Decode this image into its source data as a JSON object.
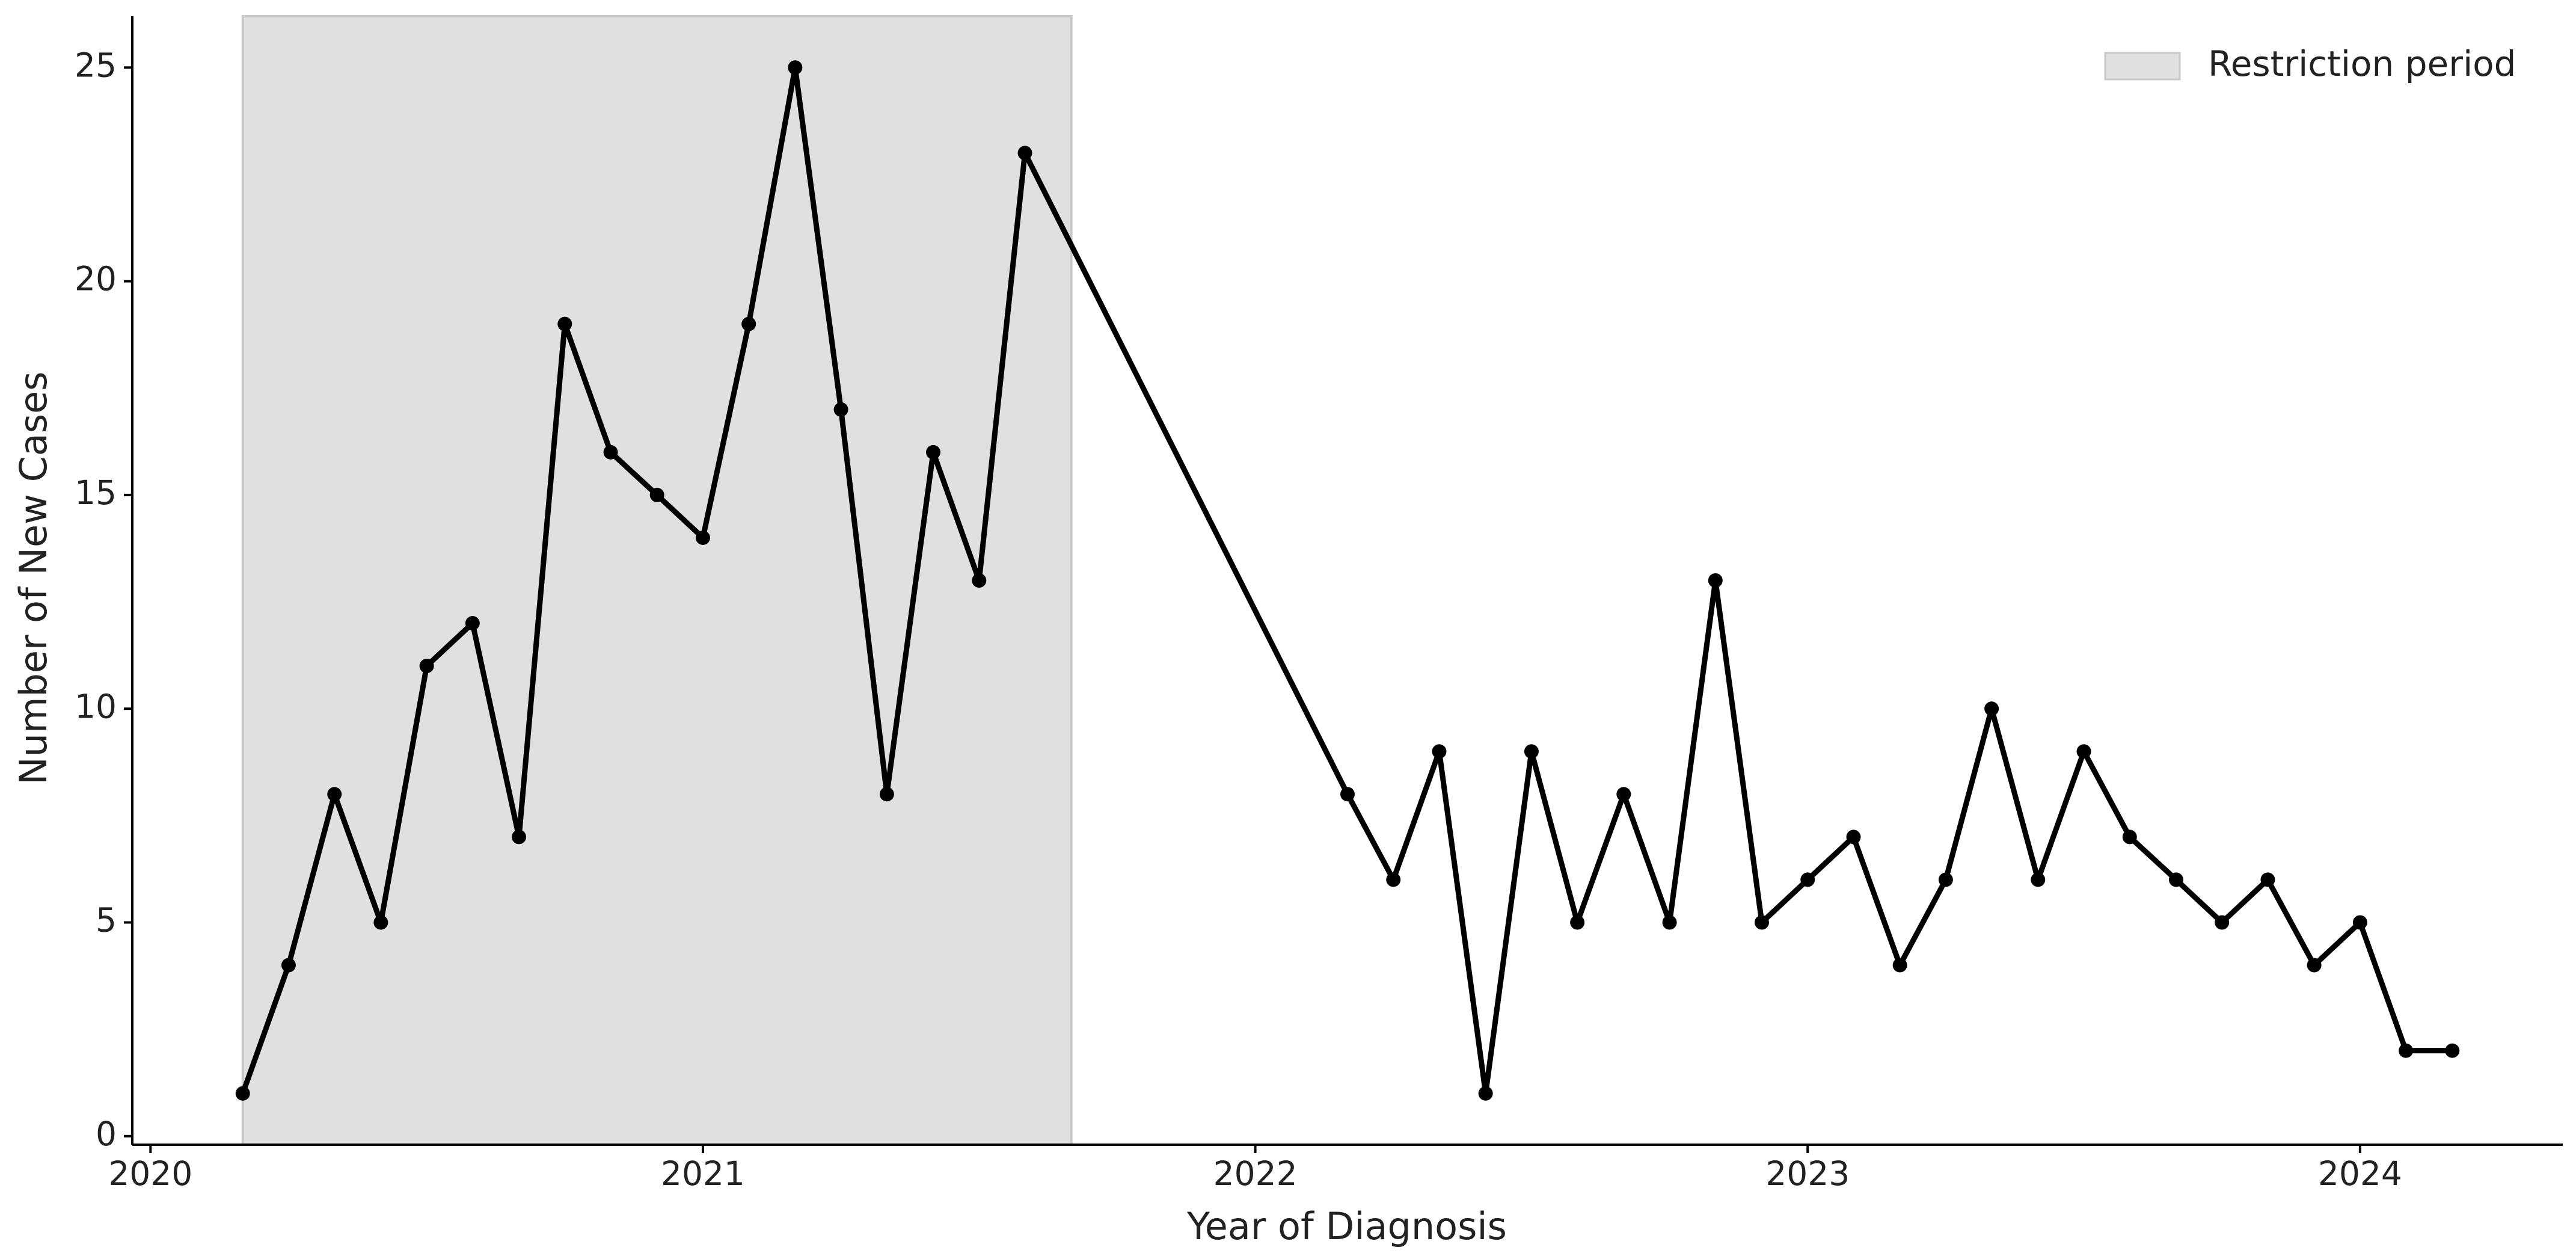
{
  "chart_data": {
    "type": "line",
    "xlabel": "Year of Diagnosis",
    "ylabel": "Number of New Cases",
    "x": [
      2020.167,
      2020.25,
      2020.333,
      2020.417,
      2020.5,
      2020.583,
      2020.667,
      2020.75,
      2020.833,
      2020.917,
      2021.0,
      2021.083,
      2021.167,
      2021.25,
      2021.333,
      2021.417,
      2021.5,
      2021.583,
      2022.167,
      2022.25,
      2022.333,
      2022.417,
      2022.5,
      2022.583,
      2022.667,
      2022.75,
      2022.833,
      2022.917,
      2023.0,
      2023.083,
      2023.167,
      2023.25,
      2023.333,
      2023.417,
      2023.5,
      2023.583,
      2023.667,
      2023.75,
      2023.833,
      2023.917,
      2024.0,
      2024.083,
      2024.167
    ],
    "values": [
      1,
      4,
      8,
      5,
      11,
      12,
      7,
      19,
      16,
      15,
      14,
      19,
      25,
      17,
      8,
      16,
      13,
      23,
      8,
      6,
      9,
      1,
      9,
      5,
      8,
      5,
      13,
      5,
      6,
      7,
      4,
      6,
      10,
      6,
      9,
      7,
      6,
      5,
      6,
      4,
      5,
      2,
      2
    ],
    "color": "#000000",
    "shaded_region": {
      "label": "Restriction period",
      "xrange": [
        2020.167,
        2021.667
      ],
      "color": "#e0e0e0"
    },
    "legend": "upper right",
    "xlim": [
      2019.967,
      2024.367
    ],
    "xticks": [
      2020,
      2021,
      2022,
      2023,
      2024
    ],
    "ylim": [
      -0.2,
      26.2
    ],
    "yticks": [
      0,
      5,
      10,
      15,
      20,
      25
    ]
  }
}
